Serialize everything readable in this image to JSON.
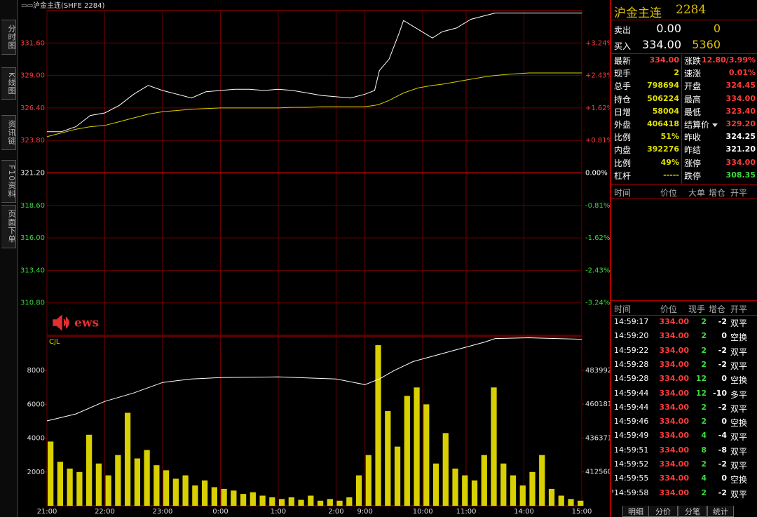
{
  "header": {
    "title": "沪金主连(SHFE 2284)"
  },
  "sidebar": {
    "tabs": [
      "分时图",
      "K线图",
      "资讯链",
      "F10资料",
      "页面下单"
    ]
  },
  "watermark": "ews",
  "chart_data": [
    {
      "type": "line",
      "x": [
        0,
        15,
        30,
        45,
        60,
        75,
        90,
        105,
        120,
        135,
        150,
        165,
        180,
        195,
        210,
        225,
        240,
        255,
        270,
        285,
        300,
        315,
        330,
        340,
        345,
        355,
        365,
        370,
        385,
        400,
        410,
        425,
        440,
        455,
        465,
        480,
        500,
        520,
        540,
        555
      ],
      "series": [
        {
          "color": "#ffffff",
          "values": [
            324.5,
            324.5,
            324.9,
            325.8,
            326.0,
            326.6,
            327.5,
            328.2,
            327.8,
            327.5,
            327.2,
            327.7,
            327.8,
            327.9,
            327.9,
            327.8,
            327.9,
            327.8,
            327.6,
            327.4,
            327.3,
            327.2,
            327.5,
            327.8,
            329.4,
            330.3,
            332.3,
            333.4,
            332.7,
            332.0,
            332.5,
            332.8,
            333.5,
            333.8,
            334.0,
            334.0,
            334.0,
            334.0,
            334.0,
            334.0
          ]
        },
        {
          "color": "#d8d000",
          "values": [
            324.1,
            324.4,
            324.7,
            324.9,
            325.0,
            325.3,
            325.6,
            325.9,
            326.1,
            326.2,
            326.3,
            326.35,
            326.4,
            326.4,
            326.4,
            326.4,
            326.4,
            326.45,
            326.45,
            326.5,
            326.5,
            326.5,
            326.5,
            326.6,
            326.7,
            327.0,
            327.4,
            327.6,
            328.0,
            328.2,
            328.3,
            328.5,
            328.7,
            328.9,
            329.0,
            329.1,
            329.2,
            329.2,
            329.2,
            329.2
          ]
        }
      ],
      "xlim": [
        0,
        555
      ],
      "ylim": [
        308.2,
        334.2
      ],
      "yticks": [
        {
          "value": 331.6,
          "label": "331.60"
        },
        {
          "value": 329,
          "label": "329.00"
        },
        {
          "value": 326.4,
          "label": "326.40"
        },
        {
          "value": 323.8,
          "label": "323.80"
        },
        {
          "value": 321.2,
          "label": "321.20"
        },
        {
          "value": 318.6,
          "label": "318.60"
        },
        {
          "value": 316,
          "label": "316.00"
        },
        {
          "value": 313.4,
          "label": "313.40"
        },
        {
          "value": 310.8,
          "label": "310.80"
        }
      ],
      "y2lim": [
        -4.05,
        4.05
      ],
      "y2ticks": [
        {
          "value": 3.24,
          "label": "+3.24%"
        },
        {
          "value": 2.43,
          "label": "+2.43%"
        },
        {
          "value": 1.62,
          "label": "+1.62%"
        },
        {
          "value": 0.81,
          "label": "+0.81%"
        },
        {
          "value": 0,
          "label": "0.00%"
        },
        {
          "value": -0.81,
          "label": "-0.81%"
        },
        {
          "value": -1.62,
          "label": "-1.62%"
        },
        {
          "value": -2.43,
          "label": "-2.43%"
        },
        {
          "value": -3.24,
          "label": "-3.24%"
        }
      ],
      "grid": true
    },
    {
      "type": "bar",
      "label": "CJL",
      "series": [
        {
          "color": "#d8d000",
          "x": [
            0,
            10,
            20,
            30,
            40,
            50,
            60,
            70,
            80,
            90,
            100,
            110,
            120,
            130,
            140,
            150,
            160,
            170,
            180,
            190,
            200,
            210,
            220,
            230,
            240,
            250,
            260,
            270,
            280,
            290,
            300,
            310,
            320,
            330,
            340,
            350,
            360,
            370,
            380,
            390,
            400,
            410,
            420,
            430,
            440,
            450,
            460,
            470,
            480,
            490,
            500,
            510,
            520,
            530,
            540,
            550
          ],
          "values": [
            3800,
            2600,
            2200,
            2000,
            4200,
            2500,
            1800,
            3000,
            5500,
            2800,
            3300,
            2400,
            2100,
            1600,
            1800,
            1200,
            1500,
            1100,
            1000,
            900,
            700,
            800,
            600,
            500,
            400,
            500,
            350,
            600,
            300,
            400,
            300,
            500,
            1800,
            3000,
            9500,
            5600,
            3500,
            6500,
            7000,
            6000,
            2500,
            4300,
            2200,
            1800,
            1500,
            3000,
            7000,
            2500,
            1800,
            1200,
            2000,
            3000,
            1000,
            600,
            400,
            300
          ]
        },
        {
          "color": "#ffffff",
          "axis": "y2",
          "x": [
            0,
            30,
            60,
            90,
            120,
            150,
            180,
            240,
            300,
            330,
            345,
            360,
            380,
            420,
            455,
            465,
            500,
            555
          ],
          "values": [
            448400,
            453300,
            462100,
            468000,
            475400,
            477900,
            478800,
            479300,
            477900,
            473900,
            477900,
            483700,
            490100,
            497500,
            503900,
            506300,
            506800,
            505800
          ]
        }
      ],
      "xlim": [
        0,
        555
      ],
      "xticks": [
        {
          "value": 0,
          "label": "21:00"
        },
        {
          "value": 60,
          "label": "22:00"
        },
        {
          "value": 120,
          "label": "23:00"
        },
        {
          "value": 180,
          "label": "0:00"
        },
        {
          "value": 240,
          "label": "1:00"
        },
        {
          "value": 300,
          "label": "2:00"
        },
        {
          "value": 330,
          "label": "9:00"
        },
        {
          "value": 390,
          "label": "10:00"
        },
        {
          "value": 435,
          "label": "11:00"
        },
        {
          "value": 495,
          "label": "14:00"
        },
        {
          "value": 555,
          "label": "15:00"
        }
      ],
      "ylim": [
        0,
        10000
      ],
      "yticks": [
        2000,
        4000,
        6000,
        8000
      ],
      "y2lim": [
        388750,
        507560
      ],
      "y2ticks": [
        412560,
        436371,
        460181,
        483992
      ]
    }
  ],
  "panel": {
    "title": "沪金主连",
    "code": "2284",
    "ask": {
      "label": "卖出",
      "price": "0.00",
      "volume": "0"
    },
    "bid": {
      "label": "买入",
      "price": "334.00",
      "volume": "5360"
    },
    "quote": [
      [
        "最新",
        "334.00",
        "涨跌",
        "12.80/3.99%"
      ],
      [
        "现手",
        "2",
        "速涨",
        "0.01%"
      ],
      [
        "总手",
        "798694",
        "开盘",
        "324.45"
      ],
      [
        "持仓",
        "506224",
        "最高",
        "334.00"
      ],
      [
        "日增",
        "58004",
        "最低",
        "323.40"
      ],
      [
        "外盘",
        "406418",
        "结算价",
        "329.20"
      ],
      [
        "比例",
        "51%",
        "昨收",
        "324.25"
      ],
      [
        "内盘",
        "392276",
        "昨结",
        "321.20"
      ],
      [
        "比例",
        "49%",
        "涨停",
        "334.00"
      ],
      [
        "杠杆",
        "-----",
        "跌停",
        "308.35"
      ]
    ],
    "big_orders": {
      "headers": [
        "时间",
        "价位",
        "大单",
        "增仓",
        "开平"
      ]
    },
    "ticks": {
      "headers": [
        "时间",
        "价位",
        "现手",
        "增仓",
        "开平"
      ],
      "rows": [
        [
          "14:59:17",
          "334.00",
          "2",
          "-2",
          "双平"
        ],
        [
          "14:59:20",
          "334.00",
          "2",
          "0",
          "空换"
        ],
        [
          "14:59:22",
          "334.00",
          "2",
          "-2",
          "双平"
        ],
        [
          "14:59:28",
          "334.00",
          "2",
          "-2",
          "双平"
        ],
        [
          "14:59:28",
          "334.00",
          "12",
          "0",
          "空换"
        ],
        [
          "14:59:44",
          "334.00",
          "12",
          "-10",
          "多平"
        ],
        [
          "14:59:44",
          "334.00",
          "2",
          "-2",
          "双平"
        ],
        [
          "14:59:46",
          "334.00",
          "2",
          "0",
          "空换"
        ],
        [
          "14:59:49",
          "334.00",
          "4",
          "-4",
          "双平"
        ],
        [
          "14:59:51",
          "334.00",
          "8",
          "-8",
          "双平"
        ],
        [
          "14:59:52",
          "334.00",
          "2",
          "-2",
          "双平"
        ],
        [
          "14:59:55",
          "334.00",
          "4",
          "0",
          "空换"
        ],
        [
          "14:59:58",
          "334.00",
          "2",
          "-2",
          "双平"
        ]
      ]
    },
    "tabs": [
      "明细",
      "分价",
      "分笔",
      "统计"
    ]
  }
}
